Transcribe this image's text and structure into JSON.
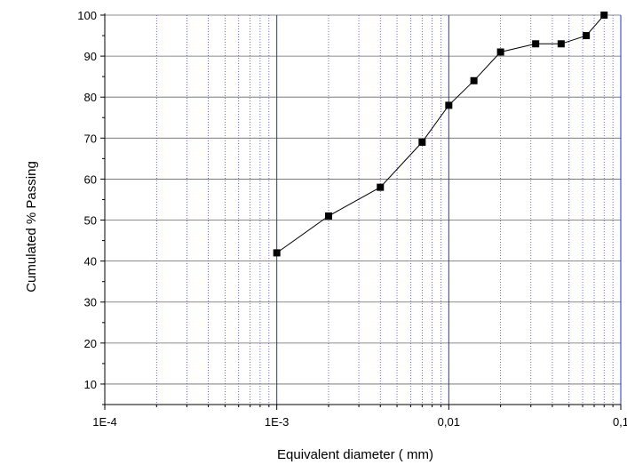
{
  "chart_data": {
    "type": "scatter",
    "title": "",
    "xlabel": "Equivalent diameter ( mm)",
    "ylabel": "Cumulated % Passing",
    "x_scale": "log",
    "xlim": [
      0.0001,
      0.1
    ],
    "ylim": [
      5,
      100
    ],
    "x_ticks": [
      {
        "value": 0.0001,
        "label": "1E-4"
      },
      {
        "value": 0.001,
        "label": "1E-3"
      },
      {
        "value": 0.01,
        "label": "0,01"
      },
      {
        "value": 0.1,
        "label": "0,1"
      }
    ],
    "y_ticks": [
      {
        "value": 10,
        "label": "10"
      },
      {
        "value": 20,
        "label": "20"
      },
      {
        "value": 30,
        "label": "30"
      },
      {
        "value": 40,
        "label": "40"
      },
      {
        "value": 50,
        "label": "50"
      },
      {
        "value": 60,
        "label": "60"
      },
      {
        "value": 70,
        "label": "70"
      },
      {
        "value": 80,
        "label": "80"
      },
      {
        "value": 90,
        "label": "90"
      },
      {
        "value": 100,
        "label": "100"
      }
    ],
    "grid": {
      "major_x": true,
      "minor_x": true,
      "major_y": true
    },
    "legend": "none",
    "series": [
      {
        "x": [
          0.001,
          0.002,
          0.004,
          0.007,
          0.01,
          0.014,
          0.02,
          0.032,
          0.045,
          0.063,
          0.08
        ],
        "y": [
          42,
          51,
          58,
          69,
          78,
          84,
          91,
          93,
          93,
          95,
          100
        ],
        "marker": "square",
        "connected": true
      }
    ],
    "colors": {
      "major_grid_x": "#2233cc",
      "minor_grid_x": "#4444cc",
      "grid_y": "#666666",
      "line": "#000000",
      "marker": "#000000"
    }
  }
}
